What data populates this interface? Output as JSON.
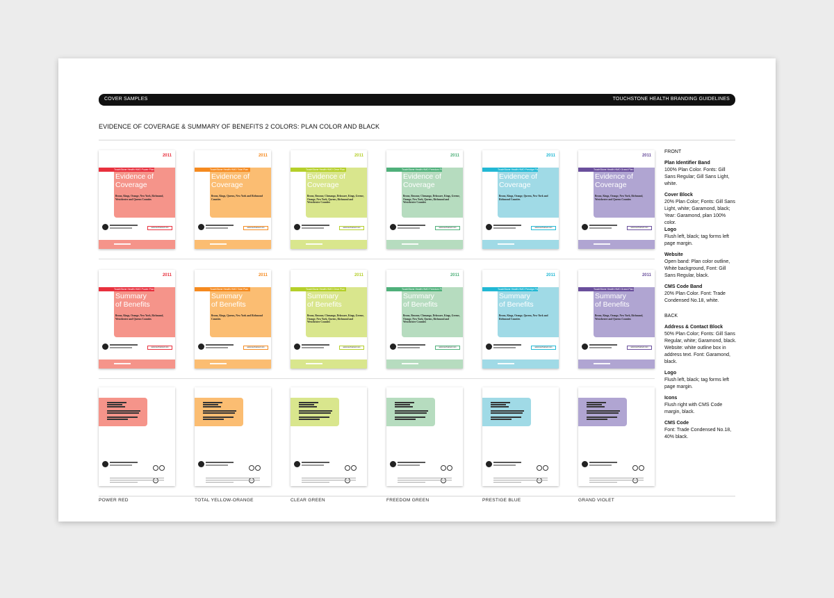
{
  "header": {
    "left": "COVER SAMPLES",
    "right": "TOUCHSTONE HEALTH BRANDING GUIDELINES"
  },
  "section_title": "EVIDENCE OF COVERAGE & SUMMARY OF BENEFITS  2 COLORS: PLAN COLOR AND BLACK",
  "plans": [
    {
      "label": "POWER RED",
      "band": "TouchStone Health HMO Power Plan",
      "counties": "Bronx, Kings, Orange, New York, Richmond, Westchester and Queens Counties",
      "accent": "#e8303d",
      "block": "#f5948a"
    },
    {
      "label": "TOTAL YELLOW-ORANGE",
      "band": "TouchStone Health HMO Total Plan",
      "counties": "Bronx, Kings, Queens, New York and Richmond Counties",
      "accent": "#f58a1f",
      "block": "#fbbd72"
    },
    {
      "label": "CLEAR GREEN",
      "band": "TouchStone Health HMO Clear Plan",
      "counties": "Bronx, Broome, Chenango, Delaware, Kings, Greene, Orange, New York, Queens, Richmond and Westchester Counties",
      "accent": "#b5cf2a",
      "block": "#d9e68d"
    },
    {
      "label": "FREEDOM GREEN",
      "band": "TouchStone Health HMO Freedom Plan",
      "counties": "Bronx, Broome, Chenango, Delaware, Kings, Greene, Orange, New York, Queens, Richmond and Westchester Counties",
      "accent": "#4fb07a",
      "block": "#b6dcbf"
    },
    {
      "label": "PRESTIGE BLUE",
      "band": "TouchStone Health HMO Prestige Plan",
      "counties": "Bronx, Kings, Orange, Queens, New York and Richmond Counties",
      "accent": "#22b8d4",
      "block": "#a0dae6"
    },
    {
      "label": "GRAND VIOLET",
      "band": "TouchStone Health HMO Grand Plan",
      "counties": "Bronx, Kings, Orange, New York, Richmond, Westchester and Queens Counties",
      "accent": "#6a4f9c",
      "block": "#b0a5d2"
    }
  ],
  "cover": {
    "year": "2011",
    "eoc_title_line1": "Evidence of",
    "eoc_title_line2": "Coverage",
    "sob_title_line1": "Summary",
    "sob_title_line2": "of Benefits",
    "website": "www.touchstoneh.com"
  },
  "notes": {
    "front": "FRONT",
    "plan_band_h": "Plan Identifier Band",
    "plan_band": "100% Plan Color. Fonts: Gill Sans Regular; Gill Sans Light, white.",
    "cover_block_h": "Cover Block",
    "cover_block": "20% Plan Color; Fonts: Gill Sans Light, white; Garamond, black; Year: Garamond, plan 100% color.",
    "logo_h": "Logo",
    "logo": "Flush left, black; tag forms left page margin.",
    "website_h": "Website",
    "website": "Open band: Plan color outline, White background, Font: Gill Sans Regular, black.",
    "cms_h": "CMS Code Band",
    "cms": "20% Plan Color. Font: Trade Condensed No.18, white.",
    "back": "BACK",
    "address_h": "Address & Contact Block",
    "address": "50% Plan Color; Fonts: Gill Sans Regular, white; Garamond, black. Website: white outline box in address text. Font: Garamond, black.",
    "logo2_h": "Logo",
    "logo2": "Flush left, black; tag forms left page margin.",
    "icons_h": "Icons",
    "icons": "Flush right with CMS Code margin, black.",
    "cms2_h": "CMS Code",
    "cms2": "Font: Trade Condensed No.18, 40% black."
  }
}
